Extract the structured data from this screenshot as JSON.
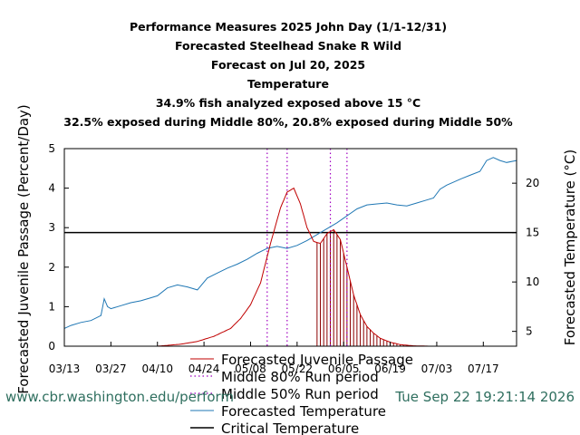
{
  "footer": {
    "url": "www.cbr.washington.edu/perform",
    "timestamp": "Tue Sep 22 19:21:14 2026",
    "color": "#2f6f5f"
  },
  "chart_data": {
    "type": "line",
    "title_lines": [
      "Performance Measures 2025 John Day (1/1-12/31)",
      "Forecasted Steelhead Snake R Wild",
      "Forecast on Jul 20, 2025",
      "Temperature",
      "34.9% fish analyzed exposed above 15 °C",
      "32.5% exposed during Middle 80%, 20.8% exposed during Middle 50%"
    ],
    "ylabel": "Forecasted Juvenile Passage (Percent/Day)",
    "y2label": "Forecasted Temperature (°C)",
    "xlim": [
      "03/13",
      "07/27"
    ],
    "ylim": [
      0,
      5
    ],
    "y2lim": [
      3.5,
      23.5
    ],
    "yticks": [
      "0",
      "1",
      "2",
      "3",
      "4",
      "5"
    ],
    "y2ticks": [
      "5",
      "10",
      "15",
      "20"
    ],
    "xticks": [
      "03/13",
      "03/27",
      "04/10",
      "04/24",
      "05/08",
      "05/22",
      "06/05",
      "06/19",
      "07/03",
      "07/17"
    ],
    "grid": false,
    "legend_position": "bottom-center",
    "colors": {
      "passage": "#c00000",
      "run80": "#a000c0",
      "run50": "#a000c0",
      "temperature": "#1f77b4",
      "critical": "#000000",
      "bars": "#8b0000"
    },
    "legend": [
      "Forecasted Juvenile Passage",
      "Middle 80% Run period",
      "Middle 50% Run period",
      "Forecasted Temperature",
      "Critical Temperature"
    ],
    "critical_temperature": 15,
    "middle80_run_period": [
      "05/13",
      "06/06"
    ],
    "middle50_run_period": [
      "05/19",
      "06/01"
    ],
    "exposed_bars_period": [
      "05/28",
      "06/25"
    ],
    "series": [
      {
        "name": "Forecasted Juvenile Passage",
        "axis": "left",
        "x": [
          "04/10",
          "04/17",
          "04/22",
          "04/27",
          "05/02",
          "05/05",
          "05/08",
          "05/11",
          "05/14",
          "05/17",
          "05/19",
          "05/21",
          "05/23",
          "05/25",
          "05/27",
          "05/29",
          "05/31",
          "06/02",
          "06/04",
          "06/06",
          "06/08",
          "06/10",
          "06/12",
          "06/14",
          "06/16",
          "06/19",
          "06/22",
          "06/26",
          "07/01",
          "07/08",
          "07/27"
        ],
        "values": [
          0.0,
          0.05,
          0.12,
          0.25,
          0.45,
          0.7,
          1.05,
          1.6,
          2.6,
          3.5,
          3.9,
          4.0,
          3.6,
          3.0,
          2.65,
          2.6,
          2.85,
          2.95,
          2.7,
          2.0,
          1.3,
          0.8,
          0.5,
          0.33,
          0.2,
          0.1,
          0.04,
          0.01,
          0.0,
          0.0,
          0.0
        ]
      },
      {
        "name": "Forecasted Temperature",
        "axis": "right",
        "x": [
          "03/13",
          "03/15",
          "03/18",
          "03/21",
          "03/24",
          "03/25",
          "03/26",
          "03/27",
          "03/30",
          "04/02",
          "04/05",
          "04/08",
          "04/10",
          "04/13",
          "04/16",
          "04/19",
          "04/22",
          "04/25",
          "04/28",
          "05/01",
          "05/04",
          "05/07",
          "05/10",
          "05/13",
          "05/16",
          "05/19",
          "05/22",
          "05/25",
          "05/28",
          "05/31",
          "06/03",
          "06/06",
          "06/09",
          "06/12",
          "06/15",
          "06/18",
          "06/21",
          "06/24",
          "06/27",
          "06/30",
          "07/02",
          "07/04",
          "07/06",
          "07/08",
          "07/10",
          "07/13",
          "07/16",
          "07/18",
          "07/20",
          "07/22",
          "07/24",
          "07/27"
        ],
        "values": [
          5.3,
          5.6,
          5.9,
          6.1,
          6.6,
          8.3,
          7.5,
          7.3,
          7.6,
          7.9,
          8.1,
          8.4,
          8.6,
          9.4,
          9.7,
          9.5,
          9.2,
          10.4,
          10.9,
          11.4,
          11.8,
          12.3,
          12.9,
          13.4,
          13.6,
          13.4,
          13.7,
          14.2,
          14.8,
          15.4,
          16.0,
          16.7,
          17.4,
          17.8,
          17.9,
          18.0,
          17.8,
          17.7,
          18.0,
          18.3,
          18.5,
          19.4,
          19.8,
          20.1,
          20.4,
          20.8,
          21.2,
          22.3,
          22.6,
          22.3,
          22.1,
          22.3
        ]
      }
    ]
  }
}
